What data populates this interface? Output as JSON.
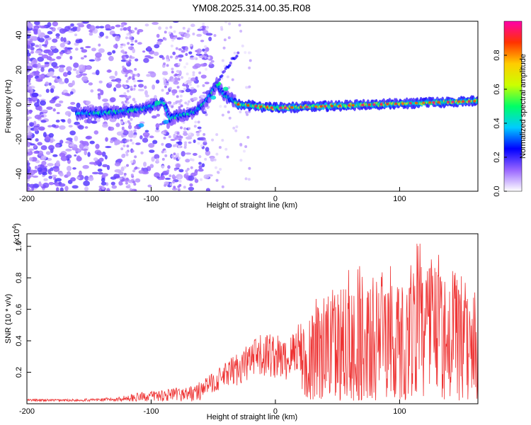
{
  "title": "YM08.2025.314.00.35.R08",
  "chart_data": [
    {
      "type": "heatmap",
      "xlabel": "Height of straight line (km)",
      "ylabel": "Frequency (Hz)",
      "xlim": [
        -200,
        163
      ],
      "ylim": [
        -50,
        48
      ],
      "x_ticks": [
        -200,
        -100,
        0,
        100
      ],
      "y_ticks": [
        -40,
        -20,
        0,
        20,
        40
      ],
      "ridge": [
        {
          "x": -155,
          "y": -5
        },
        {
          "x": -140,
          "y": -5
        },
        {
          "x": -125,
          "y": -4
        },
        {
          "x": -110,
          "y": -3
        },
        {
          "x": -95,
          "y": 0
        },
        {
          "x": -90,
          "y": 2
        },
        {
          "x": -85,
          "y": -8
        },
        {
          "x": -75,
          "y": -6
        },
        {
          "x": -65,
          "y": -4
        },
        {
          "x": -58,
          "y": 0
        },
        {
          "x": -52,
          "y": 6
        },
        {
          "x": -47,
          "y": 12
        },
        {
          "x": -42,
          "y": 6
        },
        {
          "x": -35,
          "y": 3
        },
        {
          "x": -30,
          "y": 0
        },
        {
          "x": 0,
          "y": -2
        },
        {
          "x": 40,
          "y": -1
        },
        {
          "x": 80,
          "y": 0
        },
        {
          "x": 120,
          "y": 1
        },
        {
          "x": 163,
          "y": 2
        }
      ],
      "colorbar": {
        "label": "Normalized spectral amplitude",
        "range": [
          0.0,
          1.0
        ],
        "ticks": [
          0.0,
          0.2,
          0.4,
          0.6,
          0.8
        ],
        "colormap": [
          "#ffffff",
          "#9966ff",
          "#0000ff",
          "#00ccff",
          "#00ff66",
          "#ccff00",
          "#ffcc00",
          "#ff3300",
          "#ff00aa"
        ]
      }
    },
    {
      "type": "line",
      "xlabel": "Height of straight line (km)",
      "ylabel": "SNR (10 * v/v)",
      "y_multiplier": "(x10",
      "y_multiplier_exp": "4",
      "y_multiplier_close": ")",
      "xlim": [
        -200,
        163
      ],
      "ylim": [
        0,
        1.08
      ],
      "x_ticks": [
        -200,
        -100,
        0,
        100
      ],
      "y_ticks": [
        0.2,
        0.4,
        0.6,
        0.8,
        1.0
      ],
      "color": "#ee3333",
      "envelope": [
        {
          "x": -200,
          "y": 0.03
        },
        {
          "x": -160,
          "y": 0.03
        },
        {
          "x": -130,
          "y": 0.04
        },
        {
          "x": -110,
          "y": 0.07
        },
        {
          "x": -95,
          "y": 0.09
        },
        {
          "x": -80,
          "y": 0.1
        },
        {
          "x": -65,
          "y": 0.12
        },
        {
          "x": -50,
          "y": 0.2
        },
        {
          "x": -35,
          "y": 0.3
        },
        {
          "x": -20,
          "y": 0.4
        },
        {
          "x": -5,
          "y": 0.47
        },
        {
          "x": 10,
          "y": 0.4
        },
        {
          "x": 22,
          "y": 0.62
        },
        {
          "x": 35,
          "y": 0.72
        },
        {
          "x": 50,
          "y": 0.9
        },
        {
          "x": 70,
          "y": 0.9
        },
        {
          "x": 90,
          "y": 0.95
        },
        {
          "x": 105,
          "y": 0.92
        },
        {
          "x": 115,
          "y": 1.06
        },
        {
          "x": 130,
          "y": 0.96
        },
        {
          "x": 145,
          "y": 0.85
        },
        {
          "x": 163,
          "y": 0.72
        }
      ]
    }
  ]
}
